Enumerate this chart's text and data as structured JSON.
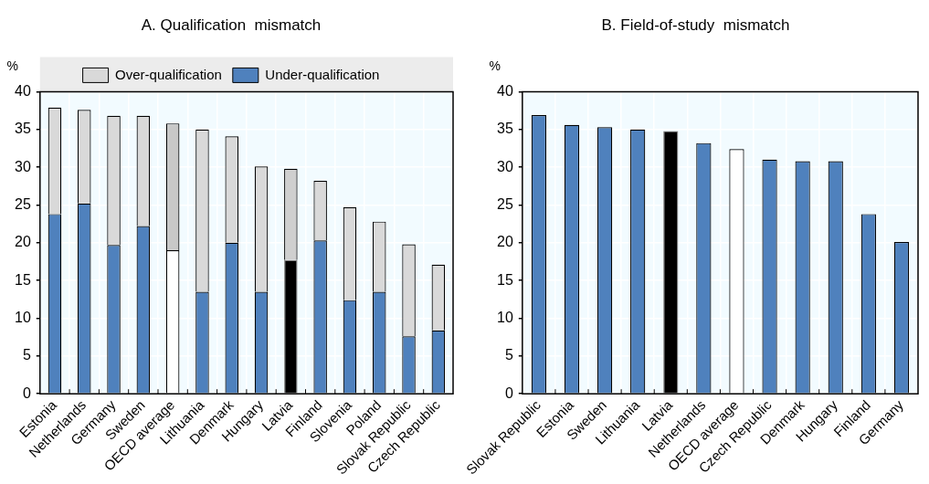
{
  "chart_data": [
    {
      "type": "bar",
      "title": "A. Qualification  mismatch",
      "ylabel": "%",
      "stacked": true,
      "legend": "top",
      "grid": true,
      "categories": [
        "Estonia",
        "Netherlands",
        "Germany",
        "Sweden",
        "OECD average",
        "Lithuania",
        "Denmark",
        "Hungary",
        "Latvia",
        "Finland",
        "Slovenia",
        "Poland",
        "Slovak Republic",
        "Czech Republic"
      ],
      "series": [
        {
          "name": "Under-qualification",
          "color": "#4f81bd",
          "colors": [
            "#4f81bd",
            "#4f81bd",
            "#4f81bd",
            "#4f81bd",
            "#ffffff",
            "#4f81bd",
            "#4f81bd",
            "#4f81bd",
            "#000000",
            "#4f81bd",
            "#4f81bd",
            "#4f81bd",
            "#4f81bd",
            "#4f81bd"
          ],
          "values": [
            23.8,
            25.2,
            19.7,
            22.2,
            19.0,
            13.5,
            20.0,
            13.5,
            17.7,
            20.3,
            12.4,
            13.5,
            7.6,
            8.4
          ]
        },
        {
          "name": "Over-qualification",
          "color": "#d9d9d9",
          "colors": [
            "#d9d9d9",
            "#d9d9d9",
            "#d9d9d9",
            "#d9d9d9",
            "#c8c8c8",
            "#d9d9d9",
            "#d9d9d9",
            "#d9d9d9",
            "#cfcfcf",
            "#d9d9d9",
            "#d9d9d9",
            "#d9d9d9",
            "#d9d9d9",
            "#d9d9d9"
          ],
          "values": [
            14.1,
            12.4,
            17.1,
            14.6,
            16.8,
            21.5,
            14.1,
            16.6,
            12.1,
            7.9,
            12.3,
            9.3,
            12.2,
            8.7
          ]
        }
      ],
      "ylim": [
        0,
        40
      ],
      "yticks": [
        0,
        5,
        10,
        15,
        20,
        25,
        30,
        35,
        40
      ]
    },
    {
      "type": "bar",
      "title": "B. Field-of-study  mismatch",
      "ylabel": "%",
      "grid": true,
      "categories": [
        "Slovak Republic",
        "Estonia",
        "Sweden",
        "Lithuania",
        "Latvia",
        "Netherlands",
        "OECD average",
        "Czech Republic",
        "Denmark",
        "Hungary",
        "Finland",
        "Germany"
      ],
      "values": [
        36.9,
        35.6,
        35.3,
        35.0,
        34.8,
        33.2,
        32.4,
        31.0,
        30.8,
        30.8,
        23.8,
        20.1
      ],
      "colors": [
        "#4f81bd",
        "#4f81bd",
        "#4f81bd",
        "#4f81bd",
        "#000000",
        "#4f81bd",
        "#ffffff",
        "#4f81bd",
        "#4f81bd",
        "#4f81bd",
        "#4f81bd",
        "#4f81bd"
      ],
      "ylim": [
        0,
        40
      ],
      "yticks": [
        0,
        5,
        10,
        15,
        20,
        25,
        30,
        35,
        40
      ]
    }
  ]
}
